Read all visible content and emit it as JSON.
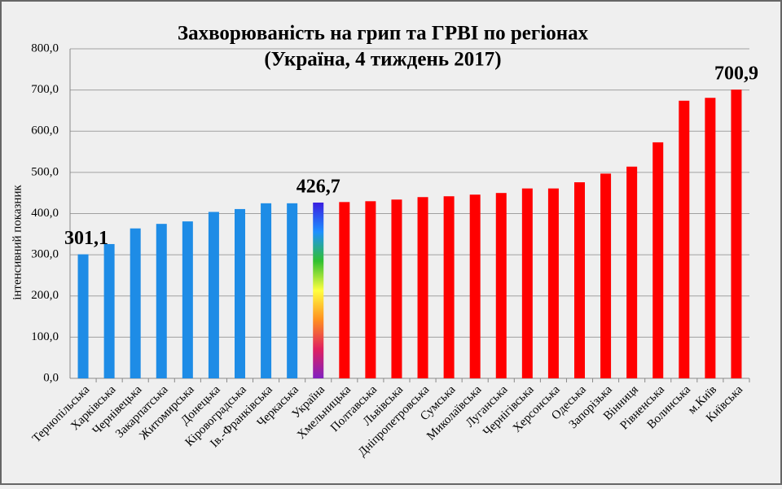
{
  "chart_data": {
    "type": "bar",
    "title": "Захворюваність на грип та ГРВІ по регіонах",
    "subtitle": "(Україна, 4 тиждень 2017)",
    "y_label": "інтенсивний показник",
    "categories": [
      "Тернопільська",
      "Харківська",
      "Чернівецька",
      "Закарпатська",
      "Житомирська",
      "Донецька",
      "Кіровоградська",
      "Ів.-Франківська",
      "Черкаська",
      "Україна",
      "Хмельницька",
      "Полтавська",
      "Львівська",
      "Дніпропетровська",
      "Сумська",
      "Миколаївська",
      "Луганська",
      "Чернігівська",
      "Херсонська",
      "Одеська",
      "Запорізька",
      "Вінниця",
      "Рівненська",
      "Волинська",
      "м.Київ",
      "Київська"
    ],
    "values": [
      301.1,
      326,
      364,
      375,
      381,
      404,
      411,
      425,
      425,
      426.7,
      428,
      430,
      434,
      440,
      442,
      446,
      450,
      461,
      461,
      476,
      497,
      514,
      573,
      674,
      681,
      700.9
    ],
    "value_labels": [
      "301,1",
      null,
      null,
      null,
      null,
      null,
      null,
      null,
      null,
      "426,7",
      null,
      null,
      null,
      null,
      null,
      null,
      null,
      null,
      null,
      null,
      null,
      null,
      null,
      null,
      null,
      "700,9"
    ],
    "colors": [
      "#1e8ce6",
      "#1e8ce6",
      "#1e8ce6",
      "#1e8ce6",
      "#1e8ce6",
      "#1e8ce6",
      "#1e8ce6",
      "#1e8ce6",
      "#1e8ce6",
      [
        "#3a1ee0",
        "#1e90ff",
        "#30c030",
        "#ffff40",
        "#ff9020",
        "#e02060",
        "#8020c0"
      ],
      "#ff0000",
      "#ff0000",
      "#ff0000",
      "#ff0000",
      "#ff0000",
      "#ff0000",
      "#ff0000",
      "#ff0000",
      "#ff0000",
      "#ff0000",
      "#ff0000",
      "#ff0000",
      "#ff0000",
      "#ff0000",
      "#ff0000",
      "#ff0000"
    ],
    "ylim": [
      0,
      800
    ],
    "yticks": [
      {
        "value": 0,
        "label": "0,0"
      },
      {
        "value": 100,
        "label": "100,0"
      },
      {
        "value": 200,
        "label": "200,0"
      },
      {
        "value": 300,
        "label": "300,0"
      },
      {
        "value": 400,
        "label": "400,0"
      },
      {
        "value": 500,
        "label": "500,0"
      },
      {
        "value": 600,
        "label": "600,0"
      },
      {
        "value": 700,
        "label": "700,0"
      },
      {
        "value": 800,
        "label": "800,0"
      }
    ],
    "grid": true
  }
}
